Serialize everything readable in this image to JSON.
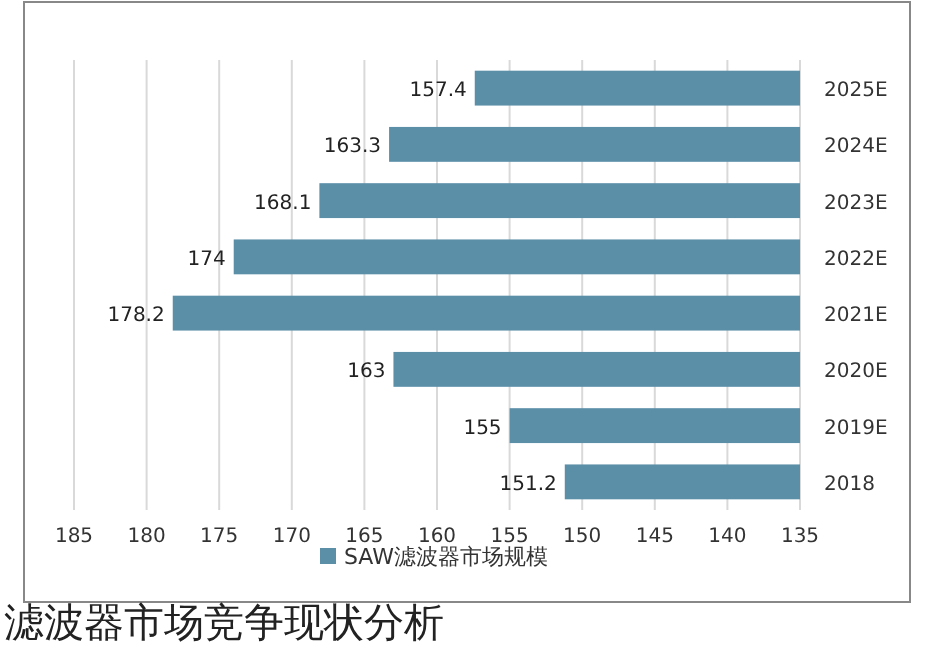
{
  "chart_data": {
    "type": "bar",
    "orientation": "horizontal",
    "title": "滤波器市场竞争现状分析",
    "categories": [
      "2025E",
      "2024E",
      "2023E",
      "2022E",
      "2021E",
      "2020E",
      "2019E",
      "2018"
    ],
    "series": [
      {
        "name": "SAW滤波器市场规模",
        "color": "#5b8fa8",
        "values": [
          157.4,
          163.3,
          168.1,
          174,
          178.2,
          163,
          155,
          151.2
        ]
      }
    ],
    "xlim": [
      185,
      135
    ],
    "xticks": [
      185,
      180,
      175,
      170,
      165,
      160,
      155,
      150,
      145,
      140,
      135
    ],
    "grid": "x",
    "legend": "bottom",
    "data_labels": true
  }
}
